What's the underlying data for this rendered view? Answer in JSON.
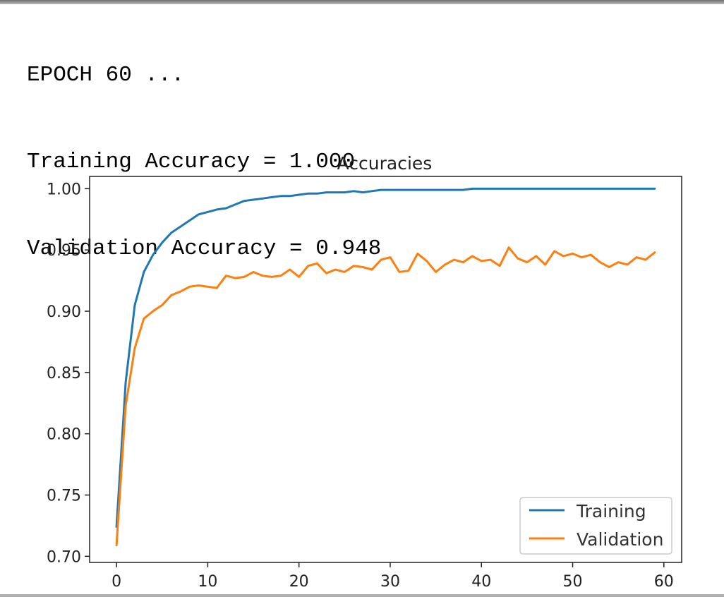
{
  "console": {
    "lines": [
      "EPOCH 60 ...",
      "Training Accuracy = 1.000",
      "Validation Accuracy = 0.948"
    ]
  },
  "chart_data": {
    "type": "line",
    "title": "Accuracies",
    "xlabel": "",
    "ylabel": "",
    "xlim": [
      -2.95,
      61.95
    ],
    "ylim": [
      0.695,
      1.01
    ],
    "xticks": [
      0,
      10,
      20,
      30,
      40,
      50,
      60
    ],
    "yticks": [
      0.7,
      0.75,
      0.8,
      0.85,
      0.9,
      0.95,
      1.0
    ],
    "grid": false,
    "legend": "lower-right",
    "series": [
      {
        "name": "Training",
        "color": "#1f77b4",
        "x": [
          0,
          1,
          2,
          3,
          4,
          5,
          6,
          7,
          8,
          9,
          10,
          11,
          12,
          13,
          14,
          15,
          16,
          17,
          18,
          19,
          20,
          21,
          22,
          23,
          24,
          25,
          26,
          27,
          28,
          29,
          30,
          31,
          32,
          33,
          34,
          35,
          36,
          37,
          38,
          39,
          40,
          41,
          42,
          43,
          44,
          45,
          46,
          47,
          48,
          49,
          50,
          51,
          52,
          53,
          54,
          55,
          56,
          57,
          58,
          59
        ],
        "y": [
          0.724,
          0.842,
          0.905,
          0.932,
          0.946,
          0.956,
          0.964,
          0.969,
          0.974,
          0.979,
          0.981,
          0.983,
          0.984,
          0.987,
          0.99,
          0.991,
          0.992,
          0.993,
          0.994,
          0.994,
          0.995,
          0.996,
          0.996,
          0.997,
          0.997,
          0.997,
          0.998,
          0.997,
          0.998,
          0.999,
          0.999,
          0.999,
          0.999,
          0.999,
          0.999,
          0.999,
          0.999,
          0.999,
          0.999,
          1.0,
          1.0,
          1.0,
          1.0,
          1.0,
          1.0,
          1.0,
          1.0,
          1.0,
          1.0,
          1.0,
          1.0,
          1.0,
          1.0,
          1.0,
          1.0,
          1.0,
          1.0,
          1.0,
          1.0,
          1.0
        ]
      },
      {
        "name": "Validation",
        "color": "#ff7f0e",
        "x": [
          0,
          1,
          2,
          3,
          4,
          5,
          6,
          7,
          8,
          9,
          10,
          11,
          12,
          13,
          14,
          15,
          16,
          17,
          18,
          19,
          20,
          21,
          22,
          23,
          24,
          25,
          26,
          27,
          28,
          29,
          30,
          31,
          32,
          33,
          34,
          35,
          36,
          37,
          38,
          39,
          40,
          41,
          42,
          43,
          44,
          45,
          46,
          47,
          48,
          49,
          50,
          51,
          52,
          53,
          54,
          55,
          56,
          57,
          58,
          59
        ],
        "y": [
          0.709,
          0.823,
          0.87,
          0.894,
          0.9,
          0.905,
          0.913,
          0.916,
          0.92,
          0.921,
          0.92,
          0.919,
          0.929,
          0.927,
          0.928,
          0.932,
          0.929,
          0.928,
          0.929,
          0.934,
          0.928,
          0.937,
          0.939,
          0.931,
          0.934,
          0.932,
          0.937,
          0.936,
          0.934,
          0.942,
          0.944,
          0.932,
          0.933,
          0.947,
          0.941,
          0.932,
          0.938,
          0.942,
          0.94,
          0.945,
          0.941,
          0.942,
          0.937,
          0.952,
          0.943,
          0.94,
          0.945,
          0.938,
          0.949,
          0.945,
          0.947,
          0.944,
          0.946,
          0.94,
          0.936,
          0.94,
          0.938,
          0.944,
          0.942,
          0.948
        ]
      }
    ]
  }
}
